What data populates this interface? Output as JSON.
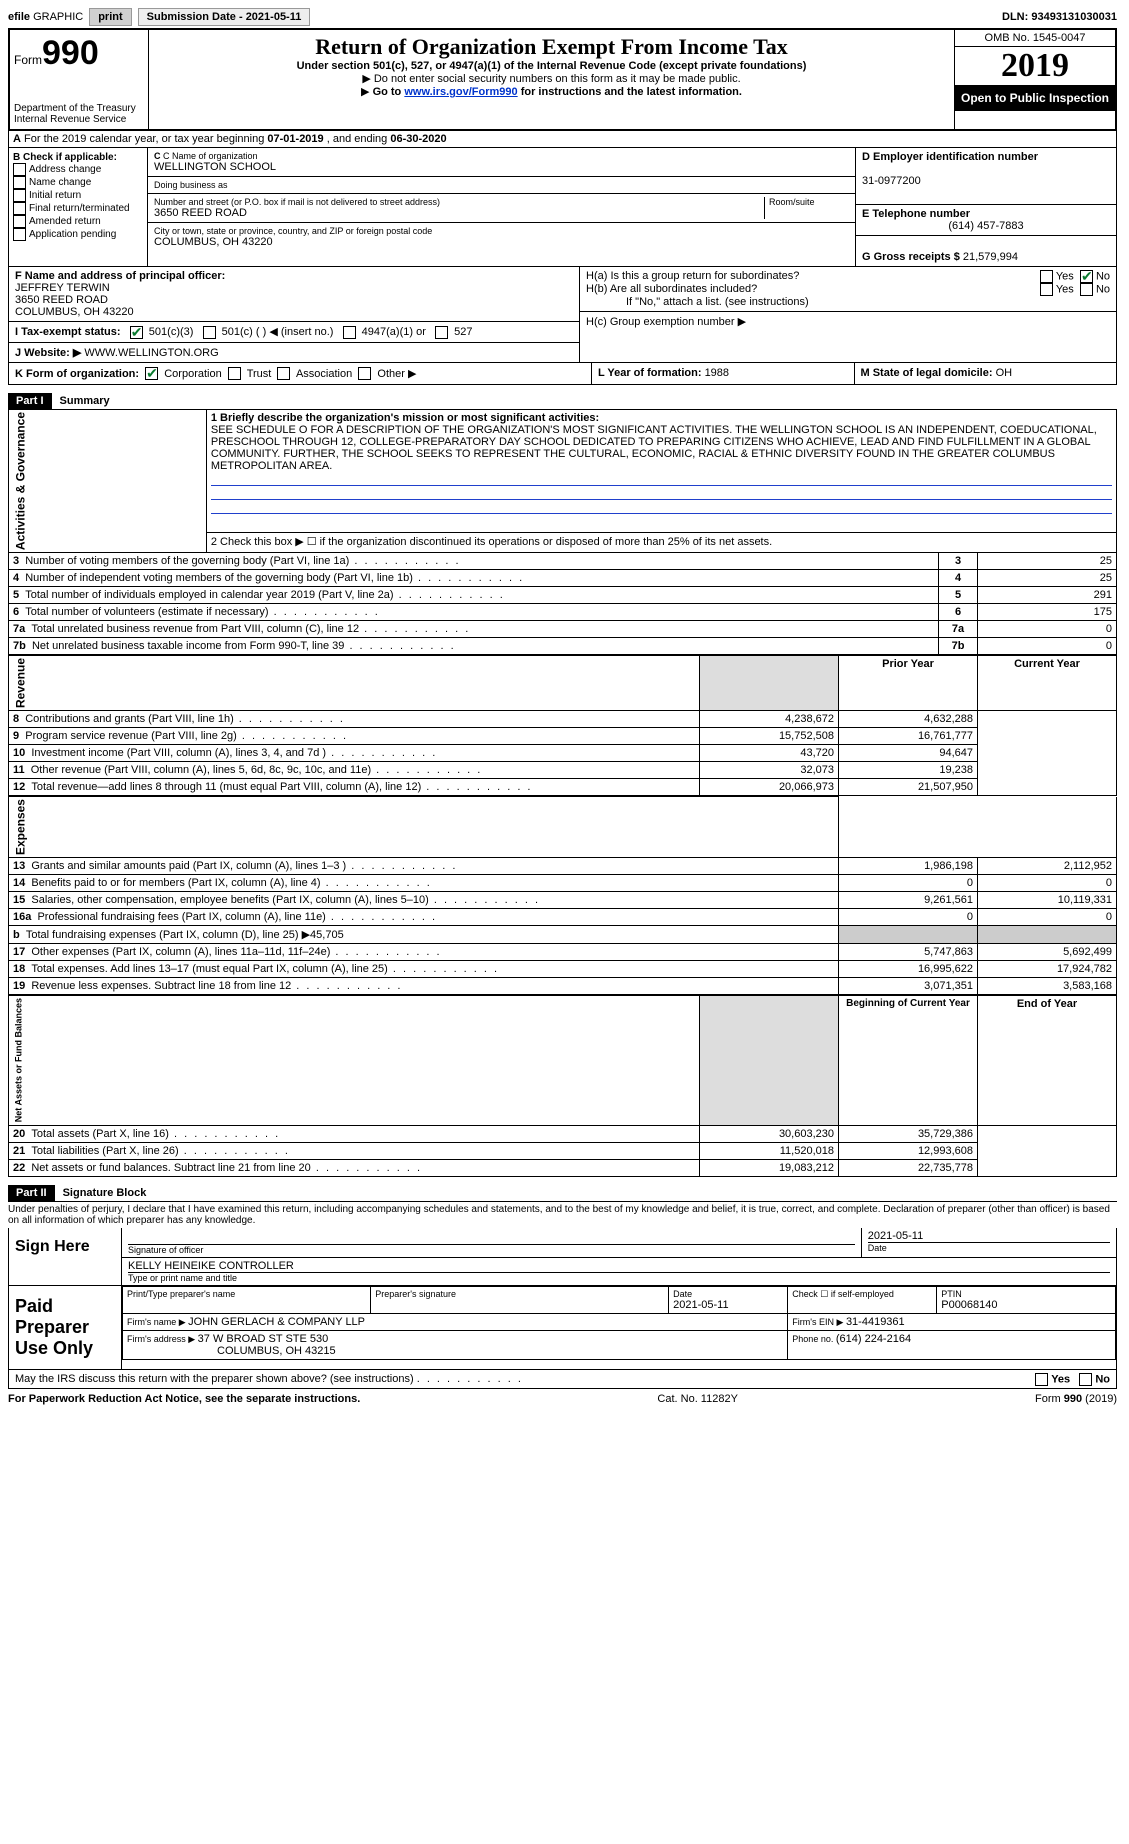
{
  "topbar": {
    "efile_prefix": "efile",
    "graphic": "GRAPHIC",
    "print": "print",
    "submission_label": "Submission Date - ",
    "submission_date": "2021-05-11",
    "dln_label": "DLN: ",
    "dln": "93493131030031"
  },
  "header": {
    "form_label": "Form",
    "form_number": "990",
    "dept": "Department of the Treasury\nInternal Revenue Service",
    "title": "Return of Organization Exempt From Income Tax",
    "subtitle": "Under section 501(c), 527, or 4947(a)(1) of the Internal Revenue Code (except private foundations)",
    "note1": "Do not enter social security numbers on this form as it may be made public.",
    "note2_pre": "Go to ",
    "note2_link": "www.irs.gov/Form990",
    "note2_post": " for instructions and the latest information.",
    "omb": "OMB No. 1545-0047",
    "year": "2019",
    "open": "Open to Public Inspection"
  },
  "rowA": {
    "text_pre": "For the 2019 calendar year, or tax year beginning ",
    "begin": "07-01-2019",
    "mid": " , and ending ",
    "end": "06-30-2020",
    "label": "A"
  },
  "boxB": {
    "label": "B Check if applicable:",
    "opts": [
      "Address change",
      "Name change",
      "Initial return",
      "Final return/terminated",
      "Amended return",
      "Application pending"
    ]
  },
  "boxC": {
    "name_label": "C Name of organization",
    "name": "WELLINGTON SCHOOL",
    "dba_label": "Doing business as",
    "dba": "",
    "street_label": "Number and street (or P.O. box if mail is not delivered to street address)",
    "street": "3650 REED ROAD",
    "room_label": "Room/suite",
    "city_label": "City or town, state or province, country, and ZIP or foreign postal code",
    "city": "COLUMBUS, OH  43220"
  },
  "boxD": {
    "label": "D Employer identification number",
    "ein": "31-0977200"
  },
  "boxE": {
    "label": "E Telephone number",
    "phone": "(614) 457-7883"
  },
  "boxG": {
    "label": "G Gross receipts $ ",
    "amount": "21,579,994"
  },
  "boxF": {
    "label": "F Name and address of principal officer:",
    "name": "JEFFREY TERWIN",
    "street": "3650 REED ROAD",
    "city": "COLUMBUS, OH  43220"
  },
  "boxH": {
    "ha": "H(a)  Is this a group return for subordinates?",
    "hb": "H(b)  Are all subordinates included?",
    "hb_note": "If \"No,\" attach a list. (see instructions)",
    "hc": "H(c)  Group exemption number ▶",
    "yes": "Yes",
    "no": "No"
  },
  "boxI": {
    "label": "I    Tax-exempt status:",
    "o1": "501(c)(3)",
    "o2": "501(c) (  ) ◀ (insert no.)",
    "o3": "4947(a)(1) or",
    "o4": "527"
  },
  "boxJ": {
    "label": "J    Website: ▶",
    "value": " WWW.WELLINGTON.ORG"
  },
  "boxK": {
    "label": "K Form of organization:",
    "opts": [
      "Corporation",
      "Trust",
      "Association",
      "Other ▶"
    ]
  },
  "boxL": {
    "label": "L Year of formation: ",
    "value": "1988"
  },
  "boxM": {
    "label": "M State of legal domicile: ",
    "value": "OH"
  },
  "part1": {
    "header": "Part I",
    "title": "Summary",
    "line1_label": "1  Briefly describe the organization's mission or most significant activities:",
    "mission": "SEE SCHEDULE O FOR A DESCRIPTION OF THE ORGANIZATION'S MOST SIGNIFICANT ACTIVITIES. THE WELLINGTON SCHOOL IS AN INDEPENDENT, COEDUCATIONAL, PRESCHOOL THROUGH 12, COLLEGE-PREPARATORY DAY SCHOOL DEDICATED TO PREPARING CITIZENS WHO ACHIEVE, LEAD AND FIND FULFILLMENT IN A GLOBAL COMMUNITY. FURTHER, THE SCHOOL SEEKS TO REPRESENT THE CULTURAL, ECONOMIC, RACIAL & ETHNIC DIVERSITY FOUND IN THE GREATER COLUMBUS METROPOLITAN AREA.",
    "line2": "2   Check this box ▶ ☐ if the organization discontinued its operations or disposed of more than 25% of its net assets.",
    "sideA": "Activities & Governance",
    "sideR": "Revenue",
    "sideE": "Expenses",
    "sideN": "Net Assets or Fund Balances",
    "rows_ag": [
      {
        "n": "3",
        "d": "Number of voting members of the governing body (Part VI, line 1a)",
        "v": "25"
      },
      {
        "n": "4",
        "d": "Number of independent voting members of the governing body (Part VI, line 1b)",
        "v": "25"
      },
      {
        "n": "5",
        "d": "Total number of individuals employed in calendar year 2019 (Part V, line 2a)",
        "v": "291"
      },
      {
        "n": "6",
        "d": "Total number of volunteers (estimate if necessary)",
        "v": "175"
      },
      {
        "n": "7a",
        "d": "Total unrelated business revenue from Part VIII, column (C), line 12",
        "v": "0"
      },
      {
        "n": "7b",
        "d": "Net unrelated business taxable income from Form 990-T, line 39",
        "v": "0"
      }
    ],
    "col_prior": "Prior Year",
    "col_current": "Current Year",
    "col_begin": "Beginning of Current Year",
    "col_end": "End of Year",
    "rows_rev": [
      {
        "n": "8",
        "d": "Contributions and grants (Part VIII, line 1h)",
        "p": "4,238,672",
        "c": "4,632,288"
      },
      {
        "n": "9",
        "d": "Program service revenue (Part VIII, line 2g)",
        "p": "15,752,508",
        "c": "16,761,777"
      },
      {
        "n": "10",
        "d": "Investment income (Part VIII, column (A), lines 3, 4, and 7d )",
        "p": "43,720",
        "c": "94,647"
      },
      {
        "n": "11",
        "d": "Other revenue (Part VIII, column (A), lines 5, 6d, 8c, 9c, 10c, and 11e)",
        "p": "32,073",
        "c": "19,238"
      },
      {
        "n": "12",
        "d": "Total revenue—add lines 8 through 11 (must equal Part VIII, column (A), line 12)",
        "p": "20,066,973",
        "c": "21,507,950"
      }
    ],
    "rows_exp": [
      {
        "n": "13",
        "d": "Grants and similar amounts paid (Part IX, column (A), lines 1–3 )",
        "p": "1,986,198",
        "c": "2,112,952"
      },
      {
        "n": "14",
        "d": "Benefits paid to or for members (Part IX, column (A), line 4)",
        "p": "0",
        "c": "0"
      },
      {
        "n": "15",
        "d": "Salaries, other compensation, employee benefits (Part IX, column (A), lines 5–10)",
        "p": "9,261,561",
        "c": "10,119,331"
      },
      {
        "n": "16a",
        "d": "Professional fundraising fees (Part IX, column (A), line 11e)",
        "p": "0",
        "c": "0"
      },
      {
        "n": "b",
        "d": "Total fundraising expenses (Part IX, column (D), line 25) ▶45,705",
        "p": "",
        "c": ""
      },
      {
        "n": "17",
        "d": "Other expenses (Part IX, column (A), lines 11a–11d, 11f–24e)",
        "p": "5,747,863",
        "c": "5,692,499"
      },
      {
        "n": "18",
        "d": "Total expenses. Add lines 13–17 (must equal Part IX, column (A), line 25)",
        "p": "16,995,622",
        "c": "17,924,782"
      },
      {
        "n": "19",
        "d": "Revenue less expenses. Subtract line 18 from line 12",
        "p": "3,071,351",
        "c": "3,583,168"
      }
    ],
    "rows_net": [
      {
        "n": "20",
        "d": "Total assets (Part X, line 16)",
        "p": "30,603,230",
        "c": "35,729,386"
      },
      {
        "n": "21",
        "d": "Total liabilities (Part X, line 26)",
        "p": "11,520,018",
        "c": "12,993,608"
      },
      {
        "n": "22",
        "d": "Net assets or fund balances. Subtract line 21 from line 20",
        "p": "19,083,212",
        "c": "22,735,778"
      }
    ]
  },
  "part2": {
    "header": "Part II",
    "title": "Signature Block",
    "penalties": "Under penalties of perjury, I declare that I have examined this return, including accompanying schedules and statements, and to the best of my knowledge and belief, it is true, correct, and complete. Declaration of preparer (other than officer) is based on all information of which preparer has any knowledge.",
    "sign_here": "Sign Here",
    "sig_officer": "Signature of officer",
    "sig_date": "2021-05-11",
    "date_label": "Date",
    "officer_name": "KELLY HEINEIKE CONTROLLER",
    "type_name": "Type or print name and title",
    "paid_label": "Paid Preparer Use Only",
    "print_name_label": "Print/Type preparer's name",
    "prep_sig_label": "Preparer's signature",
    "prep_date": "2021-05-11",
    "check_self": "Check ☐ if self-employed",
    "ptin_label": "PTIN",
    "ptin": "P00068140",
    "firm_name_label": "Firm's name    ▶ ",
    "firm_name": "JOHN GERLACH & COMPANY LLP",
    "firm_ein_label": "Firm's EIN ▶ ",
    "firm_ein": "31-4419361",
    "firm_addr_label": "Firm's address ▶ ",
    "firm_addr1": "37 W BROAD ST STE 530",
    "firm_addr2": "COLUMBUS, OH  43215",
    "firm_phone_label": "Phone no. ",
    "firm_phone": "(614) 224-2164",
    "may_discuss": "May the IRS discuss this return with the preparer shown above? (see instructions)"
  },
  "footer": {
    "pra": "For Paperwork Reduction Act Notice, see the separate instructions.",
    "cat": "Cat. No. 11282Y",
    "form": "Form 990 (2019)"
  }
}
